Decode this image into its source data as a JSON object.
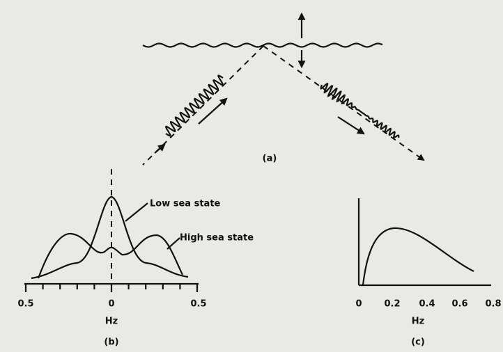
{
  "panel_a": {
    "label": "(a)"
  },
  "panel_b": {
    "annotations": [
      "Low sea state",
      "High sea state"
    ],
    "x_ticks": [
      "0.5",
      "0",
      "0.5"
    ],
    "x_label": "Hz",
    "label": "(b)"
  },
  "panel_c": {
    "x_ticks": [
      "0",
      "0.2",
      "0.4",
      "0.6",
      "0.8"
    ],
    "x_label": "Hz",
    "label": "(c)"
  }
}
